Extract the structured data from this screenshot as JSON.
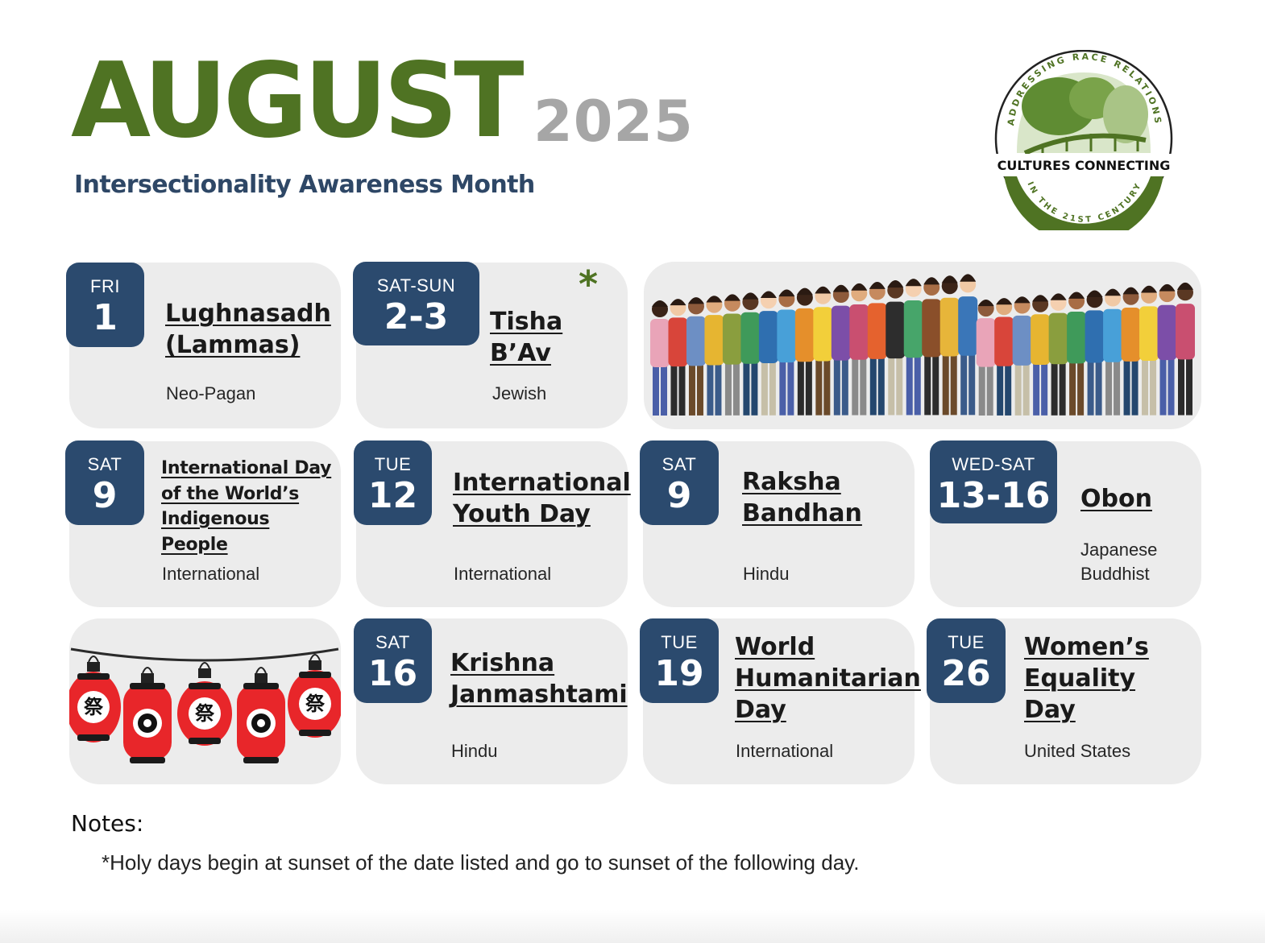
{
  "header": {
    "month": "AUGUST",
    "year": "2025",
    "subtitle": "Intersectionality Awareness Month"
  },
  "logo": {
    "top_arc": "ADDRESSING RACE RELATIONS",
    "name": "CULTURES CONNECTING",
    "bottom_arc": "IN THE 21ST CENTURY"
  },
  "events": [
    {
      "dow": "FRI",
      "day": "1",
      "title_lines": [
        "Lughnasadh",
        "(Lammas)"
      ],
      "tradition_lines": [
        "Neo-Pagan"
      ]
    },
    {
      "dow": "SAT-SUN",
      "day": "2-3",
      "title_lines": [
        "Tisha B’Av"
      ],
      "tradition_lines": [
        "Jewish"
      ],
      "marker": "*"
    },
    {
      "dow": "SAT",
      "day": "9",
      "title_lines": [
        "International Day",
        "of the World’s",
        "Indigenous",
        "People"
      ],
      "tradition_lines": [
        "International"
      ]
    },
    {
      "dow": "TUE",
      "day": "12",
      "title_lines": [
        "International",
        "Youth Day"
      ],
      "tradition_lines": [
        "International"
      ]
    },
    {
      "dow": "SAT",
      "day": "9",
      "title_lines": [
        "Raksha",
        "Bandhan"
      ],
      "tradition_lines": [
        "Hindu"
      ]
    },
    {
      "dow": "WED-SAT",
      "day": "13-16",
      "title_lines": [
        "Obon"
      ],
      "tradition_lines": [
        "Japanese",
        "Buddhist"
      ]
    },
    {
      "dow": "SAT",
      "day": "16",
      "title_lines": [
        "Krishna",
        "Janmashtami"
      ],
      "tradition_lines": [
        "Hindu"
      ]
    },
    {
      "dow": "TUE",
      "day": "19",
      "title_lines": [
        "World",
        "Humanitarian",
        "Day"
      ],
      "tradition_lines": [
        "International"
      ]
    },
    {
      "dow": "TUE",
      "day": "26",
      "title_lines": [
        "Women’s",
        "Equality",
        "Day"
      ],
      "tradition_lines": [
        "United States"
      ]
    }
  ],
  "lantern_glyphs": [
    "祭",
    "祭",
    "祭"
  ],
  "notes": {
    "label": "Notes:",
    "text": "*Holy days begin at sunset of the date listed and go to sunset of the following day."
  },
  "colors": {
    "accent_green": "#4f7323",
    "navy": "#2b4a6e",
    "card_gray": "#ececec",
    "year_gray": "#a6a6a6",
    "lantern_red": "#e8262a"
  }
}
